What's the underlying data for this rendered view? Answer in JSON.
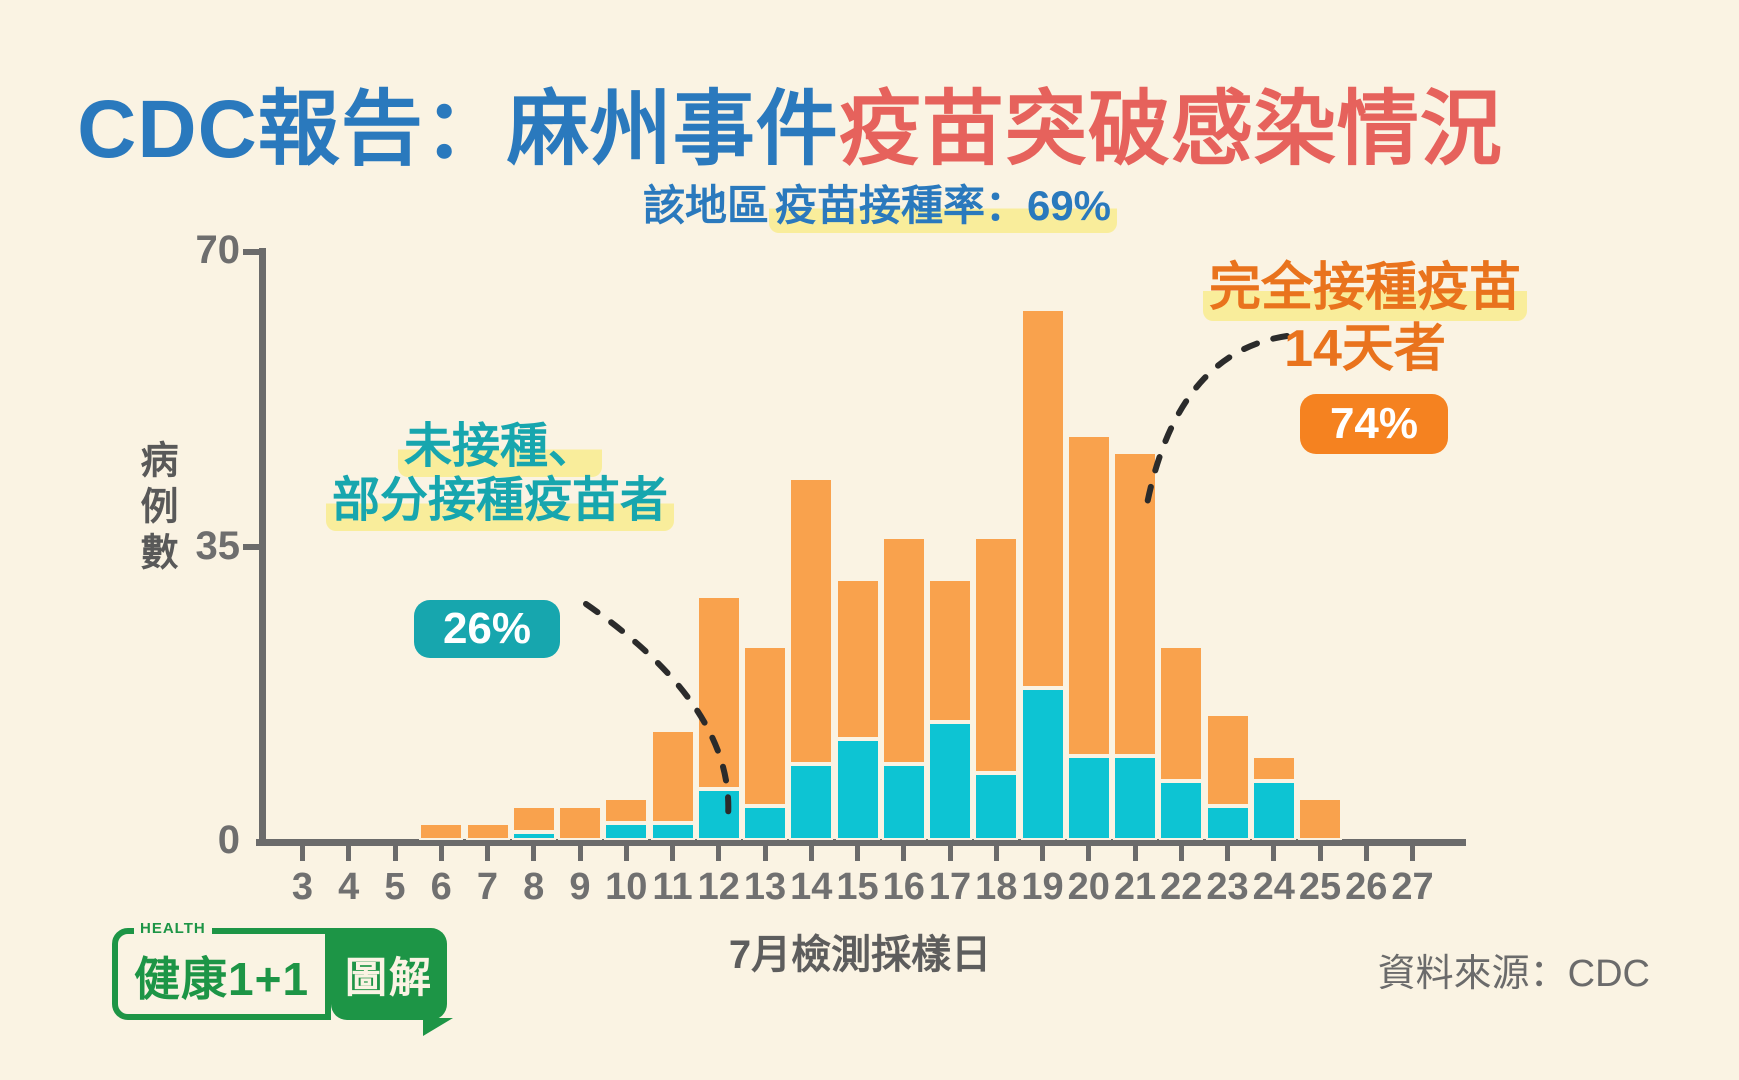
{
  "title": {
    "blue": "CDC報告：麻州事件",
    "red": "疫苗突破感染情況"
  },
  "subtitle": {
    "prefix": "該地區",
    "highlight": "疫苗接種率：69%"
  },
  "annotations": {
    "unvaccinated": {
      "line1": "未接種、",
      "line2": "部分接種疫苗者",
      "badge": "26%"
    },
    "vaccinated": {
      "line1": "完全接種疫苗",
      "line2": "14天者",
      "badge": "74%"
    }
  },
  "axes": {
    "y_label": "病例數",
    "x_label": "7月檢測採樣日",
    "y_ticks": [
      "70",
      "35",
      "0"
    ]
  },
  "source": "資料來源：CDC",
  "logo": {
    "health": "HEALTH",
    "brand": "健康1+1",
    "suffix": "圖解"
  },
  "colors": {
    "background": "#FAF3E3",
    "bar_vaccinated": "#F9A24D",
    "bar_unvaccinated": "#0DC4D3",
    "title_blue": "#2A79BD",
    "title_red": "#E6625C",
    "teal_text": "#17A6AE",
    "orange_text": "#E9731D",
    "badge_orange": "#F58220",
    "highlight_yellow": "#F9ED9B",
    "axis_gray": "#6B6B6B",
    "logo_green": "#1D9546"
  },
  "chart_data": {
    "type": "bar",
    "stacked": true,
    "title": "CDC報告：麻州事件疫苗突破感染情況",
    "subtitle": "該地區疫苗接種率：69%",
    "xlabel": "7月檢測採樣日",
    "ylabel": "病例數",
    "ylim": [
      0,
      70
    ],
    "yticks": [
      0,
      35,
      70
    ],
    "x": [
      3,
      4,
      5,
      6,
      7,
      8,
      9,
      10,
      11,
      12,
      13,
      14,
      15,
      16,
      17,
      18,
      19,
      20,
      21,
      22,
      23,
      24,
      25,
      26,
      27
    ],
    "series": [
      {
        "name": "未接種、部分接種疫苗者 (26%)",
        "color": "#0DC4D3",
        "values": [
          0,
          0,
          0,
          0,
          0,
          1,
          0,
          2,
          2,
          6,
          4,
          9,
          12,
          9,
          14,
          8,
          18,
          10,
          10,
          7,
          4,
          7,
          0,
          0,
          0
        ]
      },
      {
        "name": "完全接種疫苗14天者 (74%)",
        "color": "#F9A24D",
        "values": [
          0,
          0,
          0,
          2,
          2,
          3,
          4,
          3,
          11,
          23,
          19,
          34,
          19,
          27,
          17,
          28,
          45,
          38,
          36,
          16,
          11,
          3,
          5,
          0,
          0
        ]
      }
    ]
  }
}
